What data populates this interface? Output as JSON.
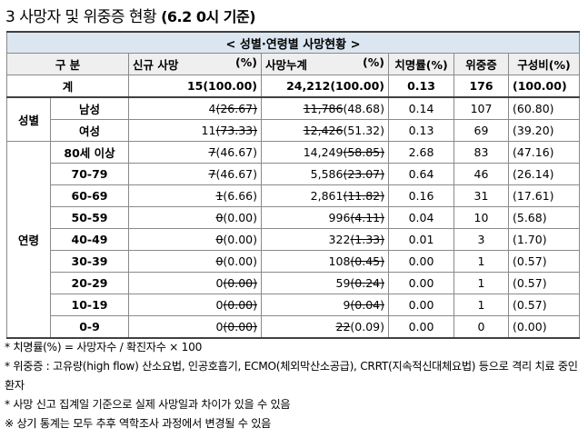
{
  "title": {
    "main": "3  사망자 및 위중증 현황",
    "date": "(6.2 0시 기준)"
  },
  "table": {
    "caption": "< 성별·연령별 사망현황 >",
    "headers": {
      "group": "구 분",
      "new_deaths": "신규 사망",
      "new_pct": "(%)",
      "cum_deaths": "사망누계",
      "cum_pct": "(%)",
      "fatality": "치명률(%)",
      "severe": "위중증",
      "composition": "구성비(%)"
    },
    "total": {
      "label": "계",
      "new": "15(100.00)",
      "cum": "24,212(100.00)",
      "fatality": "0.13",
      "severe": "176",
      "comp": "(100.00)"
    },
    "sex_label": "성별",
    "age_label": "연령",
    "sex_rows": [
      {
        "cat": "남성",
        "new_a": "4",
        "new_b": "(26.67)",
        "cum_a": "11,786",
        "cum_b": "(48.68)",
        "fatality": "0.14",
        "severe": "107",
        "comp": "(60.80)"
      },
      {
        "cat": "여성",
        "new_a": "11",
        "new_b": "(73.33)",
        "cum_a": "12,426",
        "cum_b": "(51.32)",
        "fatality": "0.13",
        "severe": "69",
        "comp": "(39.20)"
      }
    ],
    "age_rows": [
      {
        "cat": "80세 이상",
        "new_a": "7",
        "new_b": "(46.67)",
        "cum_a": "14,249",
        "cum_b": "(58.85)",
        "fatality": "2.68",
        "severe": "83",
        "comp": "(47.16)"
      },
      {
        "cat": "70-79",
        "new_a": "7",
        "new_b": "(46.67)",
        "cum_a": "5,586",
        "cum_b": "(23.07)",
        "fatality": "0.64",
        "severe": "46",
        "comp": "(26.14)"
      },
      {
        "cat": "60-69",
        "new_a": "1",
        "new_b": "(6.66)",
        "cum_a": "2,861",
        "cum_b": "(11.82)",
        "fatality": "0.16",
        "severe": "31",
        "comp": "(17.61)"
      },
      {
        "cat": "50-59",
        "new_a": "0",
        "new_b": "(0.00)",
        "cum_a": "996",
        "cum_b": "(4.11)",
        "fatality": "0.04",
        "severe": "10",
        "comp": "(5.68)"
      },
      {
        "cat": "40-49",
        "new_a": "0",
        "new_b": "(0.00)",
        "cum_a": "322",
        "cum_b": "(1.33)",
        "fatality": "0.01",
        "severe": "3",
        "comp": "(1.70)"
      },
      {
        "cat": "30-39",
        "new_a": "0",
        "new_b": "(0.00)",
        "cum_a": "108",
        "cum_b": "(0.45)",
        "fatality": "0.00",
        "severe": "1",
        "comp": "(0.57)"
      },
      {
        "cat": "20-29",
        "new_a": "0",
        "new_b": "(0.00)",
        "cum_a": "59",
        "cum_b": "(0.24)",
        "fatality": "0.00",
        "severe": "1",
        "comp": "(0.57)"
      },
      {
        "cat": "10-19",
        "new_a": "0",
        "new_b": "(0.00)",
        "cum_a": "9",
        "cum_b": "(0.04)",
        "fatality": "0.00",
        "severe": "1",
        "comp": "(0.57)"
      },
      {
        "cat": "0-9",
        "new_a": "0",
        "new_b": "(0.00)",
        "cum_a": "22",
        "cum_b": "(0.09)",
        "fatality": "0.00",
        "severe": "0",
        "comp": "(0.00)"
      }
    ]
  },
  "notes": {
    "n1": "* 치명률(%) = 사망자수 / 확진자수 × 100",
    "n2": "* 위중증 : 고유량(high flow) 산소요법, 인공호흡기, ECMO(체외막산소공급), CRRT(지속적신대체요법) 등으로 격리 치료 중인 환자",
    "n3": "* 사망 신고 집계일 기준으로 실제 사망일과 차이가 있을 수 있음",
    "n4": "※ 상기 통계는 모두 추후 역학조사 과정에서 변경될 수 있음"
  }
}
